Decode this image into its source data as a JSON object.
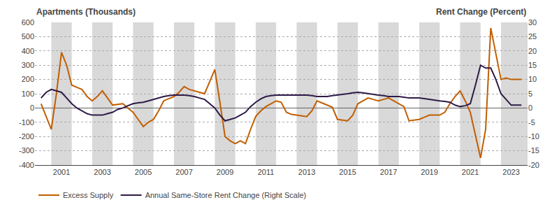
{
  "chart_data": {
    "type": "line",
    "ylabel": "Apartments (Thousands)",
    "y2label": "Rent Change (Percent)",
    "x": [
      2000.0,
      2000.25,
      2000.5,
      2000.75,
      2001.0,
      2001.25,
      2001.5,
      2001.75,
      2002.0,
      2002.25,
      2002.5,
      2002.75,
      2003.0,
      2003.25,
      2003.5,
      2003.75,
      2004.0,
      2004.25,
      2004.5,
      2004.75,
      2005.0,
      2005.25,
      2005.5,
      2005.75,
      2006.0,
      2006.25,
      2006.5,
      2006.75,
      2007.0,
      2007.25,
      2007.5,
      2007.75,
      2008.0,
      2008.25,
      2008.5,
      2008.75,
      2009.0,
      2009.25,
      2009.5,
      2009.75,
      2010.0,
      2010.25,
      2010.5,
      2010.75,
      2011.0,
      2011.25,
      2011.5,
      2011.75,
      2012.0,
      2012.25,
      2012.5,
      2012.75,
      2013.0,
      2013.25,
      2013.5,
      2013.75,
      2014.0,
      2014.25,
      2014.5,
      2014.75,
      2015.0,
      2015.25,
      2015.5,
      2015.75,
      2016.0,
      2016.25,
      2016.5,
      2016.75,
      2017.0,
      2017.25,
      2017.5,
      2017.75,
      2018.0,
      2018.25,
      2018.5,
      2018.75,
      2019.0,
      2019.25,
      2019.5,
      2019.75,
      2020.0,
      2020.25,
      2020.5,
      2020.75,
      2021.0,
      2021.25,
      2021.5,
      2021.75,
      2022.0,
      2022.25,
      2022.5,
      2022.75,
      2023.0,
      2023.25,
      2023.5
    ],
    "series": [
      {
        "name": "Excess Supply",
        "color": "#C25E00",
        "values": [
          30,
          -60,
          -150,
          100,
          390,
          300,
          160,
          145,
          130,
          80,
          50,
          80,
          120,
          70,
          20,
          25,
          30,
          0,
          -30,
          -80,
          -130,
          -100,
          -80,
          -20,
          50,
          65,
          80,
          110,
          150,
          130,
          120,
          110,
          100,
          185,
          270,
          40,
          -200,
          -230,
          -250,
          -230,
          -250,
          -150,
          -60,
          -20,
          10,
          30,
          50,
          40,
          -30,
          -45,
          -50,
          -55,
          -60,
          -20,
          50,
          35,
          20,
          5,
          -80,
          -85,
          -90,
          -50,
          30,
          50,
          70,
          60,
          50,
          60,
          70,
          50,
          30,
          10,
          -90,
          -85,
          -80,
          -65,
          -50,
          -50,
          -50,
          -30,
          30,
          80,
          120,
          50,
          -30,
          -190,
          -350,
          -150,
          560,
          380,
          200,
          210,
          200,
          200,
          200
        ]
      },
      {
        "name": "Annual Same-Store Rent Change (Right Scale)",
        "color": "#2E1A47",
        "axis": "y2",
        "values": [
          3.5,
          5.5,
          6.5,
          6.0,
          5.5,
          3.5,
          1.5,
          0.0,
          -1.0,
          -2.0,
          -2.5,
          -2.5,
          -2.5,
          -2.0,
          -1.5,
          -0.5,
          0.0,
          0.8,
          1.5,
          1.8,
          2.0,
          2.5,
          3.0,
          3.5,
          4.0,
          4.3,
          4.5,
          4.5,
          4.5,
          4.3,
          4.0,
          3.5,
          3.0,
          1.5,
          0.0,
          -2.5,
          -4.5,
          -4.0,
          -3.5,
          -2.5,
          -1.5,
          0.5,
          2.0,
          3.2,
          4.0,
          4.3,
          4.5,
          4.5,
          4.5,
          4.5,
          4.5,
          4.5,
          4.5,
          4.3,
          4.0,
          4.0,
          4.0,
          4.3,
          4.5,
          4.8,
          5.0,
          5.3,
          5.5,
          5.3,
          5.0,
          4.8,
          4.5,
          4.3,
          4.0,
          4.0,
          4.0,
          3.8,
          3.5,
          3.5,
          3.5,
          3.3,
          3.0,
          2.8,
          2.5,
          2.3,
          2.0,
          1.0,
          0.5,
          0.8,
          1.5,
          8.0,
          15.0,
          14.0,
          14.0,
          10.0,
          5.0,
          3.0,
          1.0,
          1.0,
          1.0
        ]
      }
    ],
    "xlim": [
      1999.7,
      2023.8
    ],
    "xticks": [
      2001,
      2003,
      2005,
      2007,
      2009,
      2011,
      2013,
      2015,
      2017,
      2019,
      2021,
      2023
    ],
    "ylim": [
      -400,
      600
    ],
    "yticks": [
      -400,
      -300,
      -200,
      -100,
      0,
      100,
      200,
      300,
      400,
      500,
      600
    ],
    "y2lim": [
      -20,
      30
    ],
    "y2ticks": [
      -20,
      -15,
      -10,
      -5,
      0,
      5,
      10,
      15,
      20,
      25,
      30
    ],
    "bands": [
      [
        2000.5,
        2001.5
      ],
      [
        2002.5,
        2003.5
      ],
      [
        2004.5,
        2005.5
      ],
      [
        2006.5,
        2007.5
      ],
      [
        2008.5,
        2009.5
      ],
      [
        2010.5,
        2011.5
      ],
      [
        2012.5,
        2013.5
      ],
      [
        2014.5,
        2015.5
      ],
      [
        2016.5,
        2017.5
      ],
      [
        2018.5,
        2019.5
      ],
      [
        2020.5,
        2021.5
      ],
      [
        2022.5,
        2024.0
      ]
    ],
    "band_color": "#D9D9D9",
    "grid": true,
    "legend": "bottom"
  }
}
